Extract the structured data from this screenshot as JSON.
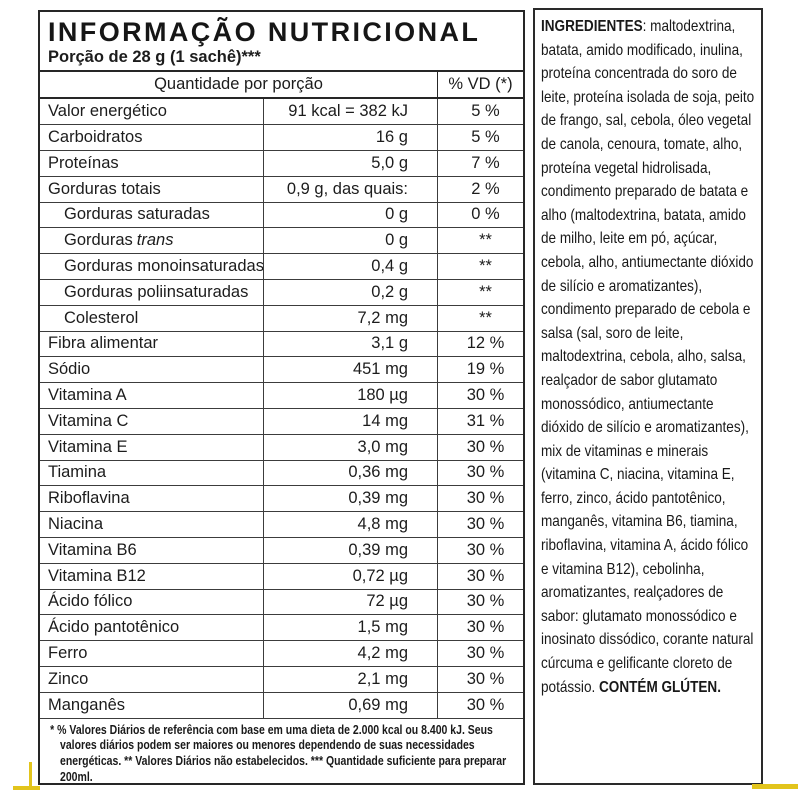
{
  "colors": {
    "border": "#262626",
    "text": "#1c1c1c",
    "background": "#ffffff",
    "artifact_yellow": "#e2c41c"
  },
  "nutrition": {
    "title": "INFORMAÇÃO NUTRICIONAL",
    "serving": "Porção de 28 g (1 sachê)***",
    "header": {
      "quantity": "Quantidade por porção",
      "dv": "% VD (*)"
    },
    "rows": [
      {
        "label": "Valor energético",
        "label_italic": "",
        "amount": "91 kcal = 382 kJ",
        "dv": "5 %",
        "indent": false
      },
      {
        "label": "Carboidratos",
        "label_italic": "",
        "amount": "16 g",
        "dv": "5 %",
        "indent": false
      },
      {
        "label": "Proteínas",
        "label_italic": "",
        "amount": "5,0 g",
        "dv": "7 %",
        "indent": false
      },
      {
        "label": "Gorduras totais",
        "label_italic": "",
        "amount": "0,9 g, das quais:",
        "dv": "2 %",
        "indent": false
      },
      {
        "label": "Gorduras saturadas",
        "label_italic": "",
        "amount": "0 g",
        "dv": "0 %",
        "indent": true
      },
      {
        "label": "Gorduras",
        "label_italic": "trans",
        "amount": "0 g",
        "dv": "**",
        "indent": true
      },
      {
        "label": "Gorduras monoinsaturadas",
        "label_italic": "",
        "amount": "0,4 g",
        "dv": "**",
        "indent": true
      },
      {
        "label": "Gorduras poliinsaturadas",
        "label_italic": "",
        "amount": "0,2 g",
        "dv": "**",
        "indent": true
      },
      {
        "label": "Colesterol",
        "label_italic": "",
        "amount": "7,2 mg",
        "dv": "**",
        "indent": true
      },
      {
        "label": "Fibra alimentar",
        "label_italic": "",
        "amount": "3,1 g",
        "dv": "12 %",
        "indent": false
      },
      {
        "label": "Sódio",
        "label_italic": "",
        "amount": "451 mg",
        "dv": "19 %",
        "indent": false
      },
      {
        "label": "Vitamina A",
        "label_italic": "",
        "amount": "180 µg",
        "dv": "30 %",
        "indent": false
      },
      {
        "label": "Vitamina C",
        "label_italic": "",
        "amount": "14 mg",
        "dv": "31 %",
        "indent": false
      },
      {
        "label": "Vitamina E",
        "label_italic": "",
        "amount": "3,0 mg",
        "dv": "30 %",
        "indent": false
      },
      {
        "label": "Tiamina",
        "label_italic": "",
        "amount": "0,36 mg",
        "dv": "30 %",
        "indent": false
      },
      {
        "label": "Riboflavina",
        "label_italic": "",
        "amount": "0,39 mg",
        "dv": "30 %",
        "indent": false
      },
      {
        "label": "Niacina",
        "label_italic": "",
        "amount": "4,8 mg",
        "dv": "30 %",
        "indent": false
      },
      {
        "label": "Vitamina B6",
        "label_italic": "",
        "amount": "0,39 mg",
        "dv": "30 %",
        "indent": false
      },
      {
        "label": "Vitamina B12",
        "label_italic": "",
        "amount": "0,72 µg",
        "dv": "30 %",
        "indent": false
      },
      {
        "label": "Ácido fólico",
        "label_italic": "",
        "amount": "72 µg",
        "dv": "30 %",
        "indent": false
      },
      {
        "label": "Ácido pantotênico",
        "label_italic": "",
        "amount": "1,5 mg",
        "dv": "30 %",
        "indent": false
      },
      {
        "label": "Ferro",
        "label_italic": "",
        "amount": "4,2 mg",
        "dv": "30 %",
        "indent": false
      },
      {
        "label": "Zinco",
        "label_italic": "",
        "amount": "2,1 mg",
        "dv": "30 %",
        "indent": false
      },
      {
        "label": "Manganês",
        "label_italic": "",
        "amount": "0,69 mg",
        "dv": "30 %",
        "indent": false
      }
    ],
    "footnote": "* % Valores Diários de referência com base em uma dieta de 2.000 kcal ou 8.400 kJ. Seus valores diários podem ser maiores ou menores dependendo de suas necessidades energéticas. ** Valores Diários não estabelecidos. *** Quantidade suficiente para preparar 200ml."
  },
  "ingredients": {
    "label": "INGREDIENTES",
    "body": ": maltodextrina, batata, amido modificado, inulina, proteína concentrada do soro de leite, proteína isolada de soja, peito de frango, sal, cebola, óleo vegetal de canola, cenoura, tomate, alho, proteína vegetal hidrolisada, condimento preparado de batata e alho (maltodextrina, batata, amido de milho, leite em pó, açúcar, cebola, alho, antiumectante dióxido de silício e aromatizantes), condimento preparado de cebola e salsa (sal, soro de leite, maltodextrina, cebola, alho, salsa, realçador de sabor glutamato monossódico, antiumectante dióxido de silício e aromatizantes), mix de vitaminas e minerais (vitamina C, niacina, vitamina E, ferro, zinco, ácido pantotênico, manganês, vitamina B6, tiamina, riboflavina, vitamina A, ácido fólico e vitamina B12), cebolinha, aromatizantes, realçadores de sabor: glutamato monossódico e inosinato dissódico, corante natural cúrcuma e gelificante cloreto de potássio. ",
    "gluten": "CONTÉM GLÚTEN."
  }
}
